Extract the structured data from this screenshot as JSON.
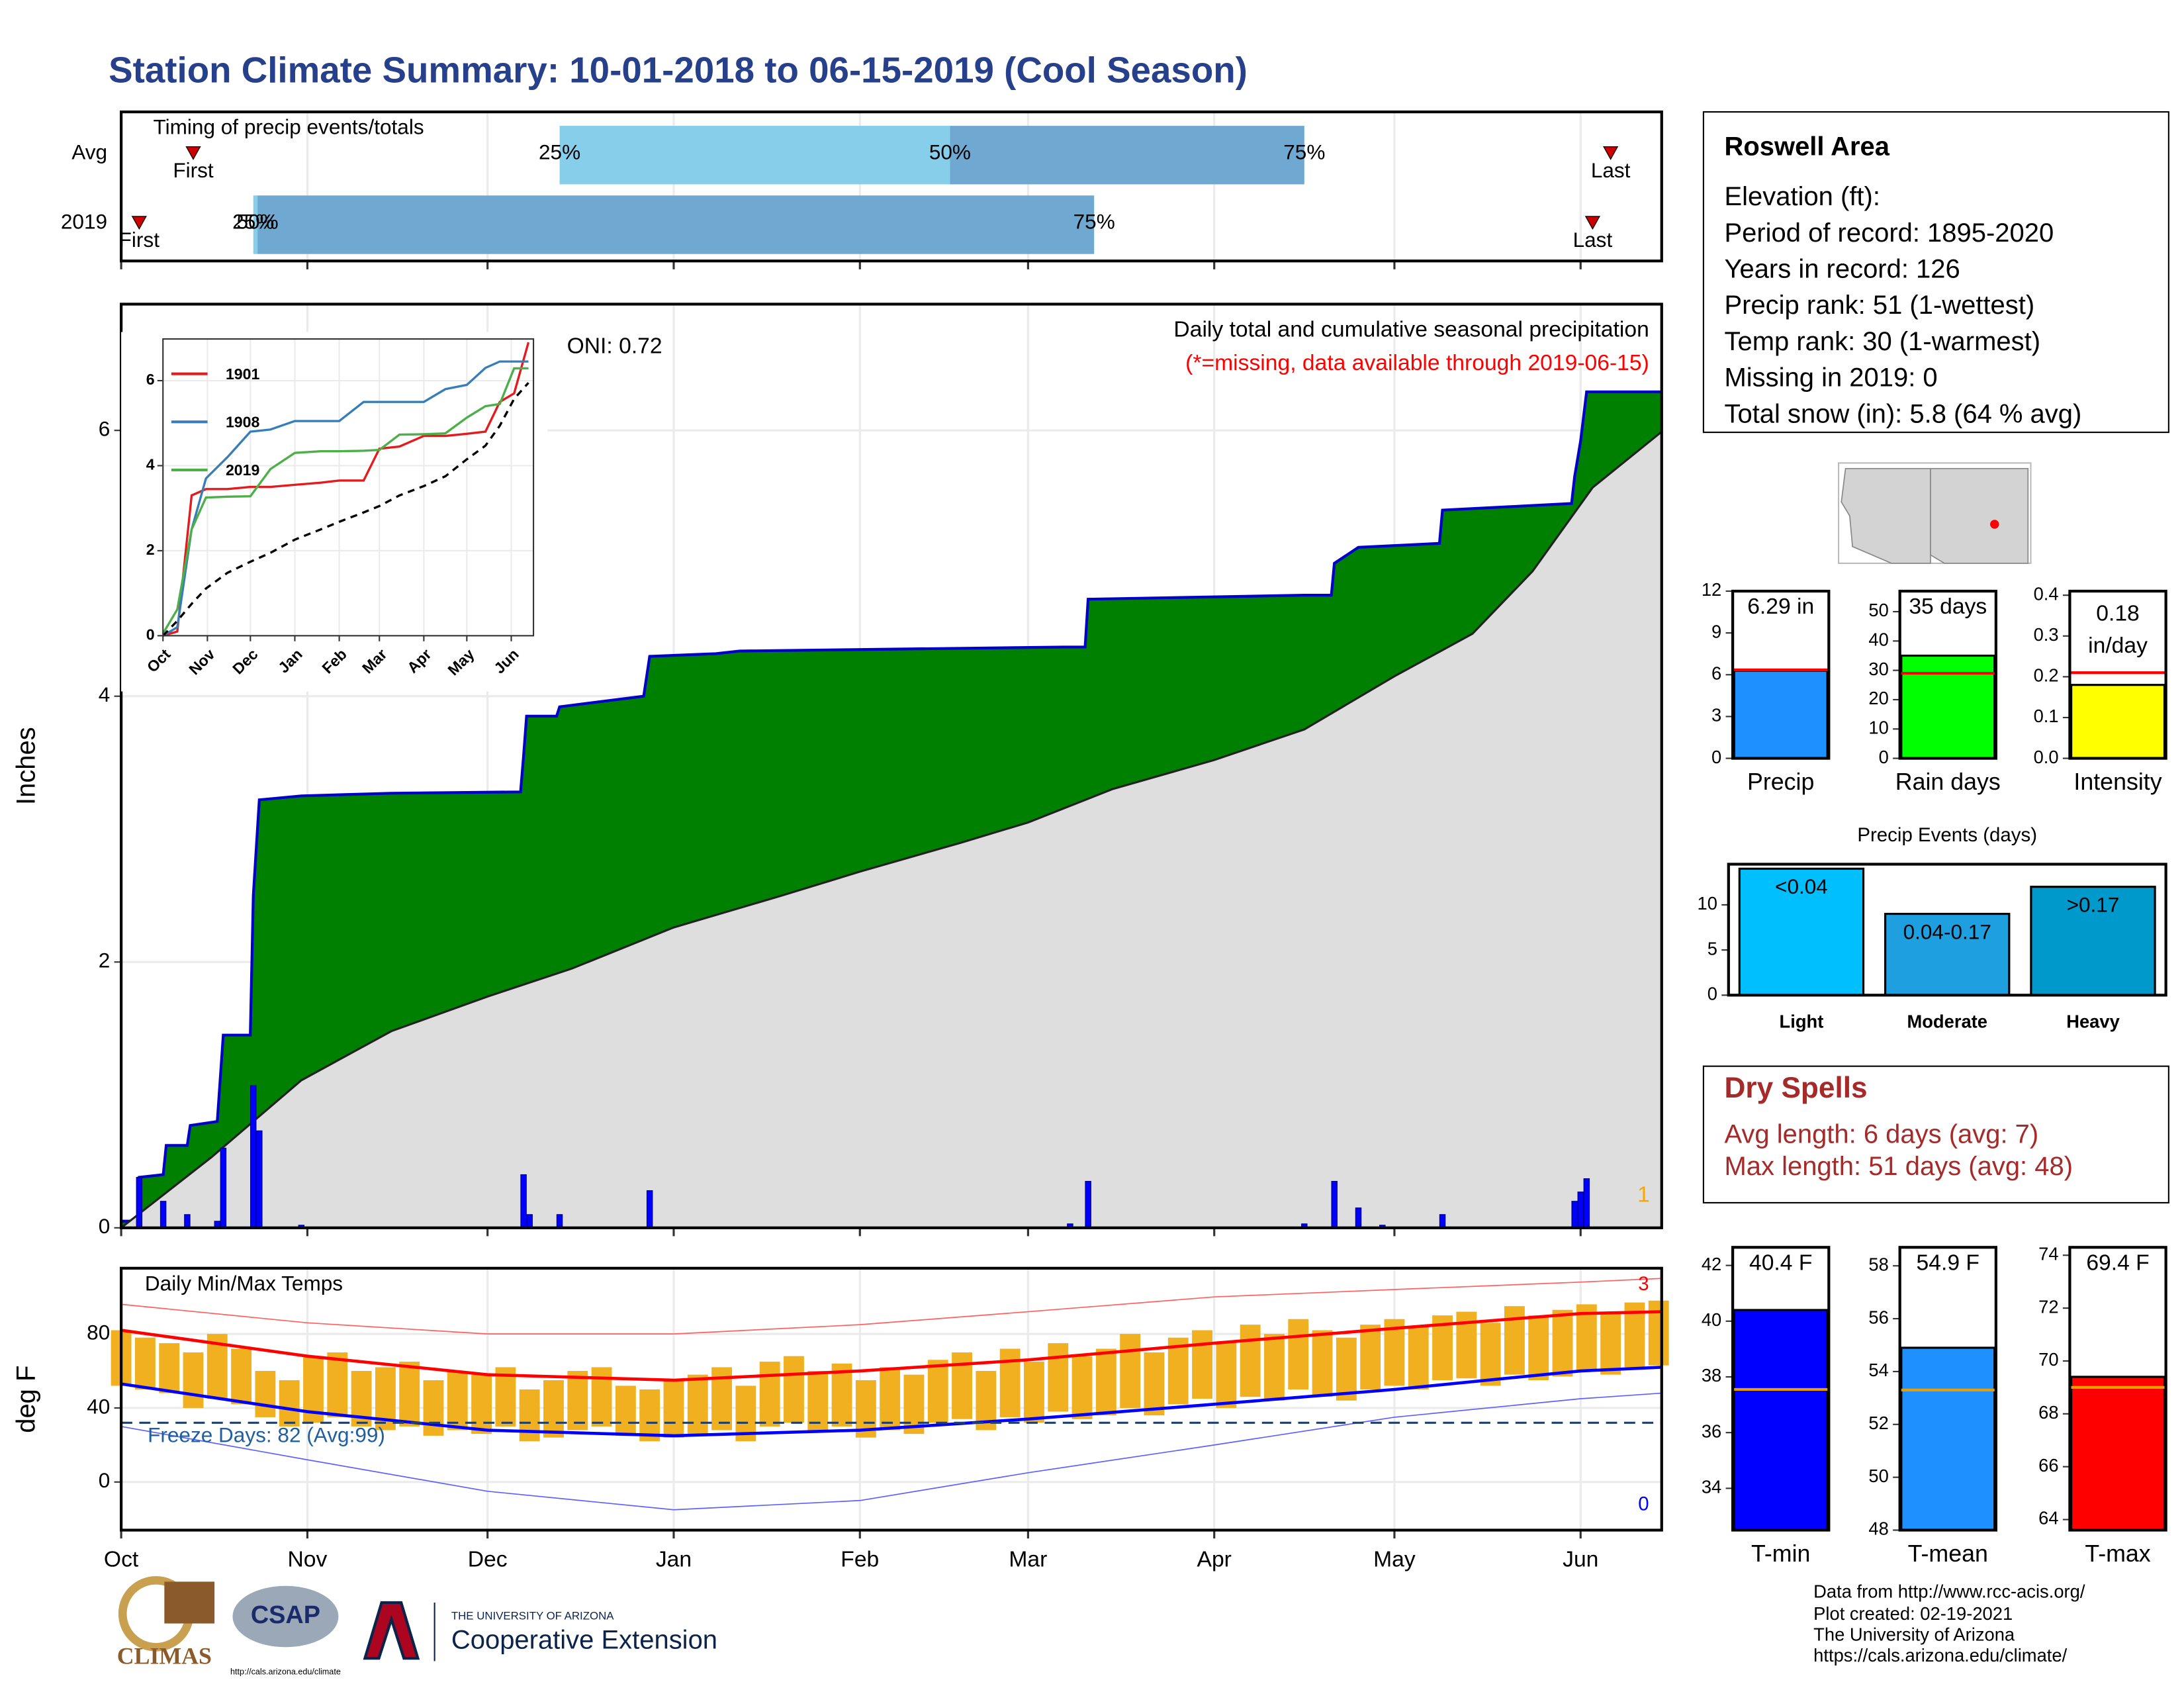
{
  "title": "Station Climate Summary: 10-01-2018 to 06-15-2019 (Cool Season)",
  "chart_data": [
    {
      "type": "timing",
      "subtitle": "Timing of precip events/totals",
      "categories": [
        "Avg",
        "2019"
      ],
      "xlim": [
        0,
        256.5
      ],
      "colors": [
        "#87ceeb",
        "#6fa8d0"
      ],
      "marker_color": "#cc0000",
      "quantile_labels": [
        "25%",
        "50%",
        "75%"
      ],
      "first_label": "First",
      "last_label": "Last",
      "series": [
        {
          "first": 12,
          "q25": 73,
          "q50": 138,
          "q75": 197,
          "last": 248
        },
        {
          "first": 3,
          "q25": 22,
          "q50": 22.7,
          "q75": 162,
          "last": 245
        }
      ]
    },
    {
      "type": "area",
      "ylabel": "Inches",
      "ylim": [
        0,
        6.95
      ],
      "yticks": [
        0,
        2,
        4,
        6
      ],
      "xlim": [
        0,
        256.5
      ],
      "grid": true,
      "oni": "ONI: 0.72",
      "subtitle": "Daily total and cumulative seasonal precipitation",
      "note": "(*=missing, data available through 2019-06-15)",
      "count": 1,
      "cumulative": {
        "color": "#0000cc",
        "fill": "#008000",
        "x": [
          0,
          2.8,
          3,
          7,
          7.5,
          11,
          11.5,
          16,
          17,
          21.5,
          22,
          23,
          30,
          45,
          66.5,
          67,
          67.5,
          72.5,
          73,
          87,
          88,
          99,
          103,
          157,
          160.5,
          161,
          197,
          201.5,
          202,
          206,
          210.5,
          219.5,
          220,
          241.5,
          242,
          243,
          244,
          256.5
        ],
        "values": [
          0.05,
          0.05,
          0.38,
          0.4,
          0.62,
          0.62,
          0.77,
          0.8,
          1.45,
          1.45,
          2.5,
          3.22,
          3.25,
          3.27,
          3.28,
          3.55,
          3.85,
          3.85,
          3.92,
          4.0,
          4.3,
          4.32,
          4.34,
          4.37,
          4.37,
          4.73,
          4.76,
          4.76,
          5.0,
          5.12,
          5.13,
          5.15,
          5.4,
          5.45,
          5.65,
          5.92,
          6.29,
          6.29
        ]
      },
      "average": {
        "color": "#222222",
        "fill": "#dedede",
        "x": [
          0,
          15,
          30,
          45,
          61,
          75,
          92,
          110,
          123,
          140,
          151,
          165,
          182,
          197,
          212,
          225,
          235,
          245,
          256.5
        ],
        "values": [
          0,
          0.53,
          1.11,
          1.48,
          1.74,
          1.95,
          2.26,
          2.5,
          2.68,
          2.9,
          3.05,
          3.3,
          3.52,
          3.75,
          4.15,
          4.47,
          4.94,
          5.57,
          5.99
        ]
      },
      "daily": {
        "color": "#0000ff",
        "x": [
          3,
          7,
          11,
          16,
          17,
          22,
          23,
          30,
          67,
          68,
          73,
          88,
          158,
          161,
          197,
          202,
          206,
          210,
          220,
          242,
          243,
          244
        ],
        "values": [
          0.38,
          0.2,
          0.1,
          0.05,
          0.6,
          1.07,
          0.73,
          0.02,
          0.4,
          0.1,
          0.1,
          0.28,
          0.03,
          0.35,
          0.03,
          0.35,
          0.15,
          0.02,
          0.1,
          0.2,
          0.27,
          0.37
        ]
      }
    },
    {
      "type": "temperature",
      "ylabel": "deg F",
      "subtitle": "Daily Min/Max Temps",
      "ylim": [
        -26,
        115.5
      ],
      "yticks": [
        0,
        40,
        80
      ],
      "xlim": [
        0,
        256.5
      ],
      "grid": true,
      "xticks": [
        {
          "value": 0,
          "label": "Oct"
        },
        {
          "value": 31,
          "label": "Nov"
        },
        {
          "value": 61,
          "label": "Dec"
        },
        {
          "value": 92,
          "label": "Jan"
        },
        {
          "value": 123,
          "label": "Feb"
        },
        {
          "value": 151,
          "label": "Mar"
        },
        {
          "value": 182,
          "label": "Apr"
        },
        {
          "value": 212,
          "label": "May"
        },
        {
          "value": 243,
          "label": "Jun"
        }
      ],
      "freeze_line": 32,
      "freeze_label": "Freeze Days: 82 (Avg:99)",
      "record_high_count": 3,
      "record_low_count": 0,
      "bar_color": "#f0b020",
      "obs_x": [
        0,
        4,
        8,
        12,
        16,
        20,
        24,
        28,
        32,
        36,
        40,
        44,
        48,
        52,
        56,
        60,
        64,
        68,
        72,
        76,
        80,
        84,
        88,
        92,
        96,
        100,
        104,
        108,
        112,
        116,
        120,
        124,
        128,
        132,
        136,
        140,
        144,
        148,
        152,
        156,
        160,
        164,
        168,
        172,
        176,
        180,
        184,
        188,
        192,
        196,
        200,
        204,
        208,
        212,
        216,
        220,
        224,
        228,
        232,
        236,
        240,
        244,
        248,
        252,
        256
      ],
      "max": [
        82,
        78,
        75,
        70,
        80,
        72,
        60,
        55,
        68,
        70,
        60,
        62,
        65,
        55,
        60,
        58,
        62,
        50,
        55,
        60,
        62,
        52,
        50,
        55,
        58,
        62,
        52,
        65,
        68,
        60,
        64,
        55,
        62,
        58,
        66,
        70,
        60,
        72,
        65,
        75,
        68,
        72,
        80,
        70,
        78,
        82,
        76,
        85,
        80,
        88,
        82,
        78,
        85,
        88,
        84,
        90,
        92,
        86,
        95,
        90,
        93,
        96,
        92,
        97,
        98
      ],
      "min": [
        52,
        50,
        48,
        40,
        45,
        42,
        35,
        30,
        32,
        35,
        30,
        28,
        30,
        25,
        28,
        26,
        30,
        22,
        24,
        28,
        30,
        25,
        22,
        24,
        26,
        28,
        22,
        30,
        32,
        28,
        30,
        24,
        28,
        26,
        32,
        34,
        28,
        35,
        32,
        38,
        34,
        36,
        40,
        36,
        42,
        45,
        40,
        46,
        44,
        50,
        46,
        44,
        50,
        52,
        50,
        55,
        56,
        52,
        58,
        55,
        57,
        60,
        58,
        62,
        63
      ],
      "normals_x": [
        0,
        31,
        61,
        92,
        123,
        151,
        182,
        212,
        243,
        256.5
      ],
      "normal_max": {
        "color": "#ff0000",
        "values": [
          82,
          68,
          58,
          55,
          60,
          66,
          75,
          83,
          91,
          92
        ]
      },
      "normal_min": {
        "color": "#0000ff",
        "values": [
          53,
          38,
          28,
          25,
          28,
          34,
          42,
          50,
          60,
          62
        ]
      },
      "record_max": {
        "color": "#ff6060",
        "values": [
          96,
          86,
          80,
          80,
          85,
          92,
          100,
          104,
          108,
          110
        ]
      },
      "record_min": {
        "color": "#6060ff",
        "values": [
          30,
          12,
          -5,
          -15,
          -10,
          5,
          20,
          35,
          45,
          48
        ]
      }
    },
    {
      "type": "line",
      "xlim": [
        0,
        258.5
      ],
      "ylim": [
        0,
        6.98
      ],
      "yticks": [
        0,
        2,
        4,
        6
      ],
      "xticks": [
        {
          "value": 0,
          "label": "Oct"
        },
        {
          "value": 31,
          "label": "Nov"
        },
        {
          "value": 61,
          "label": "Dec"
        },
        {
          "value": 92,
          "label": "Jan"
        },
        {
          "value": 123,
          "label": "Feb"
        },
        {
          "value": 151,
          "label": "Mar"
        },
        {
          "value": 182,
          "label": "Apr"
        },
        {
          "value": 212,
          "label": "May"
        },
        {
          "value": 243,
          "label": "Jun"
        }
      ],
      "x": [
        0,
        10,
        20,
        30,
        45,
        61,
        75,
        92,
        110,
        123,
        140,
        151,
        165,
        182,
        197,
        212,
        225,
        235,
        245,
        255
      ],
      "series": [
        {
          "name": "1901",
          "color": "#e41a1c",
          "values": [
            0,
            0.1,
            3.3,
            3.45,
            3.45,
            3.5,
            3.5,
            3.55,
            3.6,
            3.65,
            3.65,
            4.4,
            4.45,
            4.7,
            4.7,
            4.75,
            4.8,
            5.5,
            5.7,
            6.9
          ]
        },
        {
          "name": "1908",
          "color": "#377eb8",
          "values": [
            0,
            0.2,
            2.5,
            3.7,
            4.2,
            4.8,
            4.85,
            5.05,
            5.05,
            5.05,
            5.5,
            5.5,
            5.5,
            5.5,
            5.8,
            5.9,
            6.3,
            6.45,
            6.45,
            6.45
          ]
        },
        {
          "name": "2019",
          "color": "#4daf4a",
          "values": [
            0.05,
            0.62,
            2.5,
            3.25,
            3.27,
            3.28,
            3.92,
            4.3,
            4.34,
            4.34,
            4.35,
            4.37,
            4.73,
            4.74,
            4.76,
            5.13,
            5.4,
            5.45,
            6.29,
            6.29
          ]
        },
        {
          "color": "#000000",
          "dash": true,
          "values": [
            0,
            0.35,
            0.75,
            1.11,
            1.48,
            1.74,
            1.95,
            2.26,
            2.5,
            2.68,
            2.9,
            3.05,
            3.3,
            3.52,
            3.75,
            4.15,
            4.47,
            4.94,
            5.57,
            5.95
          ]
        }
      ]
    },
    {
      "type": "bar",
      "categories": [
        "Precip"
      ],
      "values": [
        6.29
      ],
      "value_labels": [
        "6.29 in"
      ],
      "color": "#1e90ff",
      "avg": 6.35,
      "avg_color": "#ff0000",
      "ylim": [
        0,
        12
      ],
      "yticks": [
        0,
        3,
        6,
        9,
        12
      ]
    },
    {
      "type": "bar",
      "categories": [
        "Rain days"
      ],
      "values": [
        35
      ],
      "value_labels": [
        "35 days"
      ],
      "color": "#00ff00",
      "avg": 29,
      "avg_color": "#ff0000",
      "ylim": [
        0,
        57
      ],
      "yticks": [
        0,
        10,
        20,
        30,
        40,
        50
      ]
    },
    {
      "type": "bar",
      "categories": [
        "Intensity"
      ],
      "values": [
        0.18
      ],
      "unit_label": "in/day",
      "color": "#ffff00",
      "avg": 0.21,
      "avg_color": "#ff0000",
      "ylim": [
        0,
        0.41
      ],
      "yticks": [
        {
          "value": 0,
          "label": "0.0"
        },
        0.1,
        0.2,
        0.3,
        0.4
      ]
    },
    {
      "type": "bar",
      "title": "Precip Events (days)",
      "categories": [
        "Light",
        "Moderate",
        "Heavy"
      ],
      "values": [
        14,
        9,
        12
      ],
      "bin_labels": [
        "<0.04",
        "0.04-0.17",
        ">0.17"
      ],
      "colors": [
        "#00bfff",
        "#1e9fe0",
        "#0099cc"
      ],
      "ylim": [
        0,
        14.5
      ],
      "yticks": [
        0,
        5,
        10
      ]
    },
    {
      "type": "bar",
      "categories": [
        "T-min"
      ],
      "values": [
        40.4
      ],
      "value_labels": [
        "40.4 F"
      ],
      "color": "#0000ff",
      "avg": 37.55,
      "avg_color": "#e69f00",
      "ylim": [
        32.5,
        42.65
      ],
      "yticks": [
        34,
        36,
        38,
        40,
        42
      ]
    },
    {
      "type": "bar",
      "categories": [
        "T-mean"
      ],
      "values": [
        54.9
      ],
      "value_labels": [
        "54.9 F"
      ],
      "color": "#1e90ff",
      "avg": 53.3,
      "avg_color": "#e69f00",
      "ylim": [
        48,
        58.7
      ],
      "yticks": [
        48,
        50,
        52,
        54,
        56,
        58
      ]
    },
    {
      "type": "bar",
      "categories": [
        "T-max"
      ],
      "values": [
        69.4
      ],
      "value_labels": [
        "69.4 F"
      ],
      "color": "#ff0000",
      "avg": 69.0,
      "avg_color": "#e69f00",
      "ylim": [
        63.6,
        74.3
      ],
      "yticks": [
        64,
        66,
        68,
        70,
        72,
        74
      ]
    }
  ],
  "info": {
    "title": "Roswell Area",
    "lines": [
      "Elevation (ft):",
      "Period of record: 1895-2020",
      "Years in record: 126",
      "Precip rank: 51 (1-wettest)",
      "Temp rank: 30 (1-warmest)",
      "Missing in 2019: 0",
      "Total snow (in): 5.8 (64 % avg)"
    ]
  },
  "dry_spells": {
    "title": "Dry Spells",
    "lines": [
      "Avg length: 6 days (avg: 7)",
      "Max length: 51 days (avg: 48)"
    ]
  },
  "footer": [
    "Data from http://www.rcc-acis.org/",
    "Plot created: 02-19-2021",
    "The University of Arizona",
    "https://cals.arizona.edu/climate/"
  ],
  "logos": {
    "climas": "CLIMAS",
    "csap": "CSAP",
    "csap_url": "http://cals.arizona.edu/climate",
    "ua": "THE UNIVERSITY OF ARIZONA",
    "coop": "Cooperative Extension"
  }
}
